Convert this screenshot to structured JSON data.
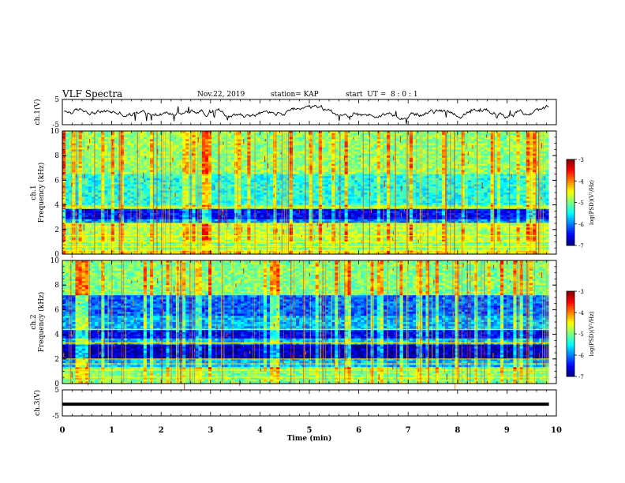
{
  "header": {
    "title": "VLF Spectra",
    "date": "Nov.22, 2019",
    "station": "station= KAP",
    "start_ut": "start  UT =  8 : 0 : 1"
  },
  "chart_data": [
    {
      "type": "line",
      "panel": "ch1-waveform",
      "ylabel": "ch.1(V)",
      "ylim": [
        -5,
        5
      ],
      "yticks": [
        -5,
        5
      ],
      "xlim": [
        0,
        10
      ],
      "series": [
        {
          "values_description_note": "",
          "color": "#000000"
        }
      ]
    },
    {
      "type": "heatmap",
      "panel": "ch1-spectrogram",
      "ylabel": "ch.1\nFrequency (kHz)",
      "ylim": [
        0,
        10
      ],
      "yticks": [
        0,
        2,
        4,
        6,
        8,
        10
      ],
      "xlim": [
        0,
        9.85
      ],
      "colorbar": {
        "label": "log(PSD)(V²/Hz)",
        "ticks": [
          -3,
          -4,
          -5,
          -6,
          -7
        ],
        "range": [
          -7,
          -3
        ]
      }
    },
    {
      "type": "heatmap",
      "panel": "ch2-spectrogram",
      "ylabel": "ch.2\nFrequency (kHz)",
      "ylim": [
        0,
        10
      ],
      "yticks": [
        0,
        2,
        4,
        6,
        8,
        10
      ],
      "xlim": [
        0,
        9.85
      ],
      "colorbar": {
        "label": "log(PSD)(V²/Hz)",
        "ticks": [
          -3,
          -4,
          -5,
          -6,
          -7
        ],
        "range": [
          -7,
          -3
        ]
      }
    },
    {
      "type": "line",
      "panel": "ch3-waveform",
      "ylabel": "ch.3(V)",
      "ylim": [
        -5,
        5
      ],
      "yticks": [
        5,
        -5
      ],
      "xlim": [
        0,
        10
      ],
      "series": [
        {
          "x": [
            0,
            9.85
          ],
          "values": [
            -0.5,
            -0.5
          ],
          "color": "#000000"
        }
      ]
    }
  ],
  "xaxis": {
    "label": "Time (min)",
    "ticks": [
      "0",
      "1",
      "2",
      "3",
      "4",
      "5",
      "6",
      "7",
      "8",
      "9",
      "10"
    ]
  }
}
